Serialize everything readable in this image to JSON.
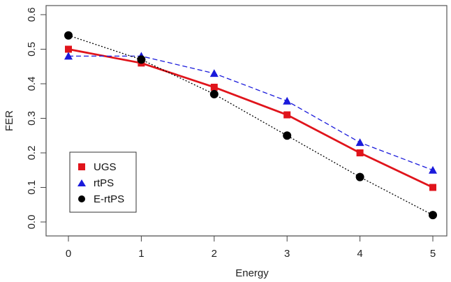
{
  "chart_data": {
    "type": "line",
    "title": "",
    "xlabel": "Energy",
    "ylabel": "FER",
    "xlim": [
      0,
      5
    ],
    "ylim": [
      0,
      0.6
    ],
    "x_ticks": [
      "0",
      "1",
      "2",
      "3",
      "4",
      "5"
    ],
    "y_ticks": [
      "0.0",
      "0.1",
      "0.2",
      "0.3",
      "0.4",
      "0.5",
      "0.6"
    ],
    "x": [
      0,
      1,
      2,
      3,
      4,
      5
    ],
    "series": [
      {
        "name": "UGS",
        "values": [
          0.5,
          0.46,
          0.39,
          0.31,
          0.2,
          0.1
        ],
        "color": "#e0141b",
        "marker": "square",
        "line": "solid"
      },
      {
        "name": "rtPS",
        "values": [
          0.48,
          0.48,
          0.43,
          0.35,
          0.23,
          0.15
        ],
        "color": "#1a1adb",
        "marker": "triangle",
        "line": "dashed"
      },
      {
        "name": "E-rtPS",
        "values": [
          0.54,
          0.47,
          0.37,
          0.25,
          0.13,
          0.02
        ],
        "color": "#000000",
        "marker": "circle",
        "line": "dotted"
      }
    ],
    "legend_position": "bottom-left",
    "grid": false
  }
}
